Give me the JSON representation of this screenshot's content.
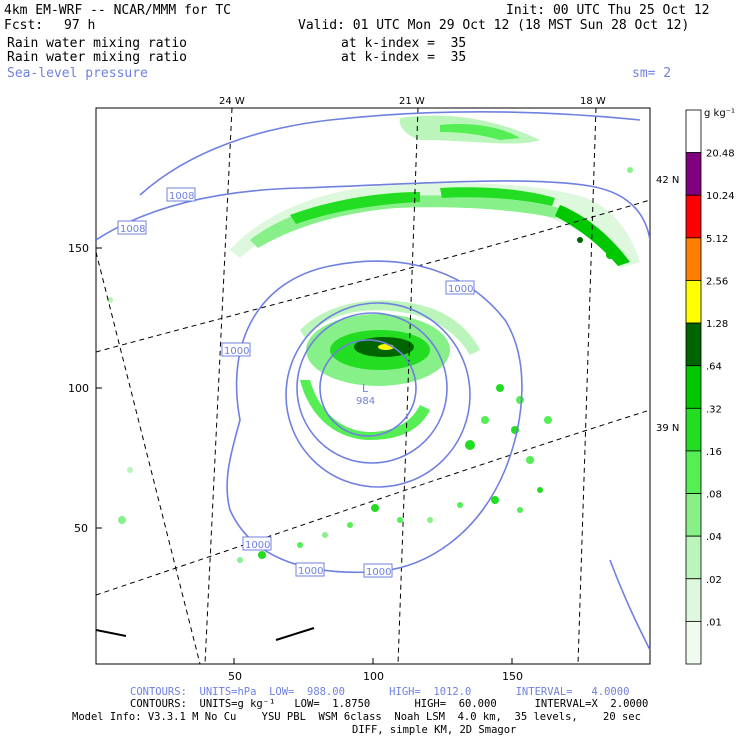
{
  "header": {
    "model_line": "4km EM-WRF -- NCAR/MMM for TC",
    "init": "Init: 00 UTC Thu 25 Oct 12",
    "fcst_label": "Fcst:",
    "fcst_value": "97 h",
    "valid": "Valid: 01 UTC Mon 29 Oct 12 (18 MST Sun 28 Oct 12)",
    "field1": "Rain water mixing ratio",
    "field1_level": "at k-index =  35",
    "field2": "Rain water mixing ratio",
    "field2_level": "at k-index =  35",
    "field3": "Sea-level pressure",
    "smoothing": "sm= 2"
  },
  "map": {
    "top_lon_labels": [
      "24 W",
      "21 W",
      "18 W"
    ],
    "right_lat_labels": [
      "42 N",
      "39 N"
    ],
    "left_ticks": [
      "150",
      "100",
      "50"
    ],
    "bottom_ticks": [
      "50",
      "100",
      "150"
    ],
    "low_center_label": "L",
    "low_center_value": "984",
    "isobar_labels": [
      "1008",
      "1008",
      "1000",
      "1000",
      "1000",
      "1000",
      "1000"
    ]
  },
  "colorbar": {
    "units": "g kg⁻¹",
    "levels": [
      "20.48",
      "10.24",
      "5.12",
      "2.56",
      "1.28",
      ".64",
      ".32",
      ".16",
      ".08",
      ".04",
      ".02",
      ".01"
    ],
    "colors": [
      "#ffffff",
      "#800080",
      "#ff0000",
      "#ff8000",
      "#ffff00",
      "#006400",
      "#00c800",
      "#22dd22",
      "#55ee55",
      "#88f088",
      "#bbf5bb",
      "#ddf8dd",
      "#f0fbf0"
    ]
  },
  "footer": {
    "contour1": "CONTOURS:  UNITS=hPa  LOW=  988.00       HIGH=  1012.0       INTERVAL=   4.0000",
    "contour2": "CONTOURS:  UNITS=g kg⁻¹   LOW=  1.8750       HIGH=  60.000      INTERVAL=X  2.0000",
    "model_info": "Model Info: V3.3.1 M No Cu    YSU PBL  WSM 6class  Noah LSM  4.0 km,  35 levels,    20 sec",
    "diff_info": "DIFF, simple KM, 2D Smagor"
  }
}
